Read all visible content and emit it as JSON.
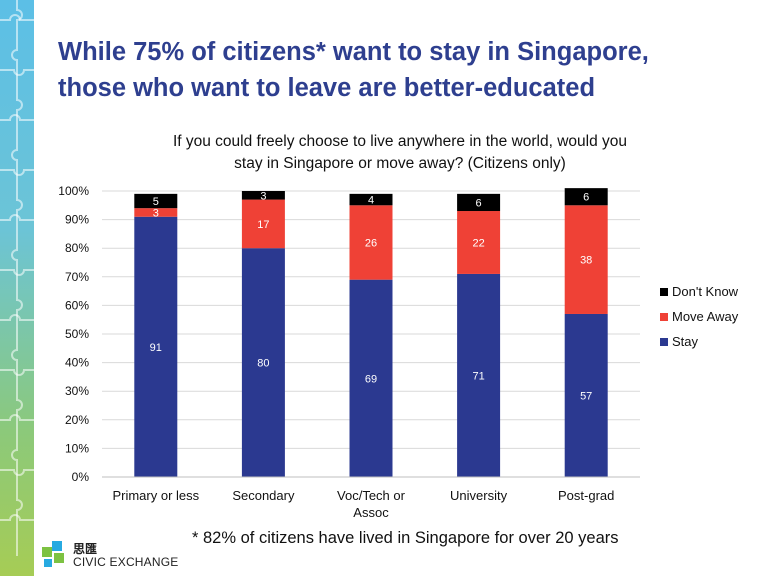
{
  "title_line1": "While 75% of citizens* want to stay in Singapore,",
  "title_line2": "those who want to leave are better-educated",
  "question_line1": "If you could freely choose to live anywhere in the world, would you",
  "question_line2": "stay in Singapore or move away? (Citizens only)",
  "footnote": "* 82% of citizens have lived in Singapore for over 20 years",
  "logo": {
    "chinese": "思匯",
    "english": "CIVIC EXCHANGE"
  },
  "colors": {
    "stay": "#2b3990",
    "move_away": "#ef4136",
    "dont_know": "#000000"
  },
  "chart_data": {
    "type": "bar",
    "stacked": true,
    "categories": [
      [
        "Primary or less"
      ],
      [
        "Secondary"
      ],
      [
        "Voc/Tech or",
        "Assoc"
      ],
      [
        "University"
      ],
      [
        "Post-grad"
      ]
    ],
    "series": [
      {
        "name": "Stay",
        "values": [
          91,
          80,
          69,
          71,
          57
        ]
      },
      {
        "name": "Move Away",
        "values": [
          3,
          17,
          26,
          22,
          38
        ]
      },
      {
        "name": "Don't Know",
        "values": [
          5,
          3,
          4,
          6,
          6
        ]
      }
    ],
    "ylim": [
      0,
      100
    ],
    "yticks": [
      "0%",
      "10%",
      "20%",
      "30%",
      "40%",
      "50%",
      "60%",
      "70%",
      "80%",
      "90%",
      "100%"
    ],
    "grid": true,
    "legend_position": "right"
  }
}
